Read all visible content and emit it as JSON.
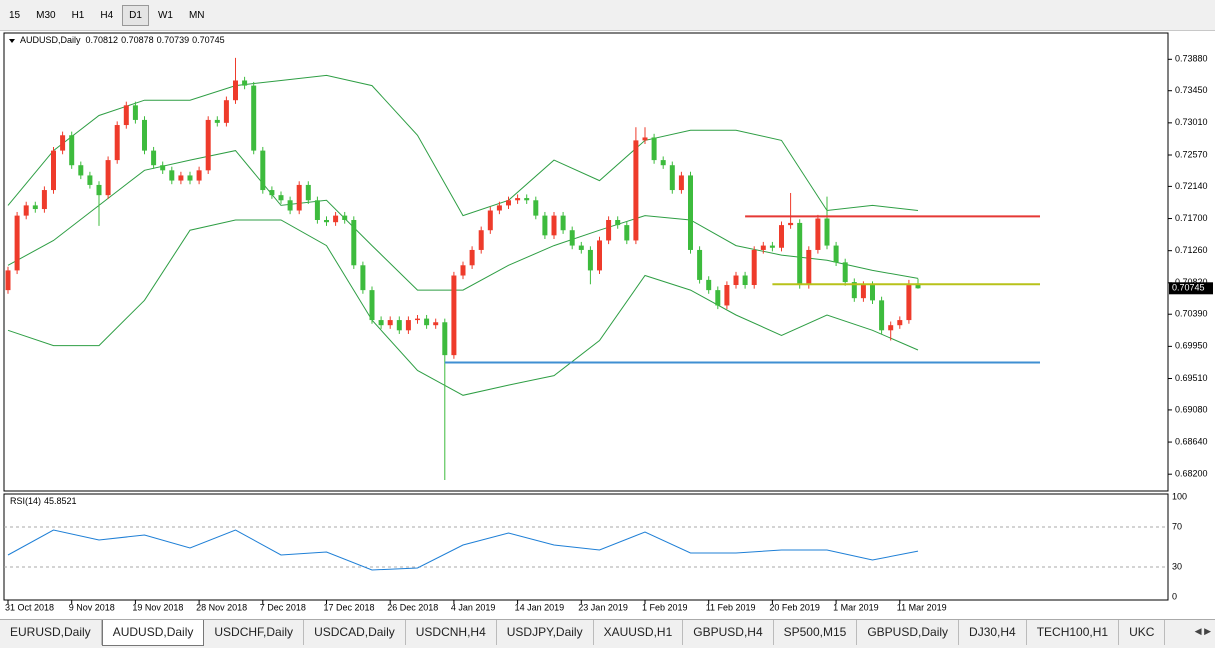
{
  "toolbar": {
    "timeframes": [
      "15",
      "M30",
      "H1",
      "H4",
      "D1",
      "W1",
      "MN"
    ],
    "active": 4
  },
  "chart_data": [
    {
      "type": "candlestick",
      "symbol": "AUDUSD,Daily",
      "categories": [
        "31 Oct 2018",
        null,
        null,
        null,
        null,
        null,
        null,
        "9 Nov 2018",
        null,
        null,
        null,
        null,
        null,
        null,
        "19 Nov 2018",
        null,
        null,
        null,
        null,
        null,
        null,
        "28 Nov 2018",
        null,
        null,
        null,
        null,
        null,
        null,
        "7 Dec 2018",
        null,
        null,
        null,
        null,
        null,
        null,
        "17 Dec 2018",
        null,
        null,
        null,
        null,
        null,
        null,
        "26 Dec 2018",
        null,
        null,
        null,
        null,
        null,
        null,
        "4 Jan 2019",
        null,
        null,
        null,
        null,
        null,
        null,
        "14 Jan 2019",
        null,
        null,
        null,
        null,
        null,
        null,
        "23 Jan 2019",
        null,
        null,
        null,
        null,
        null,
        null,
        "1 Feb 2019",
        null,
        null,
        null,
        null,
        null,
        null,
        "11 Feb 2019",
        null,
        null,
        null,
        null,
        null,
        null,
        "20 Feb 2019",
        null,
        null,
        null,
        null,
        null,
        null,
        "1 Mar 2019",
        null,
        null,
        null,
        null,
        null,
        null,
        "11 Mar 2019",
        null,
        null
      ],
      "open": [
        0.7072,
        0.7099,
        0.7174,
        0.7188,
        0.7183,
        0.7209,
        0.7263,
        0.7284,
        0.7243,
        0.7229,
        0.7216,
        0.7202,
        0.725,
        0.7298,
        0.7325,
        0.7305,
        0.7263,
        0.7243,
        0.7236,
        0.7222,
        0.7229,
        0.7222,
        0.7236,
        0.7305,
        0.7301,
        0.7332,
        0.7359,
        0.7352,
        0.7263,
        0.7209,
        0.7202,
        0.7195,
        0.7181,
        0.7216,
        0.7195,
        0.7168,
        0.7165,
        0.7174,
        0.7168,
        0.7106,
        0.7072,
        0.7031,
        0.7024,
        0.7031,
        0.7017,
        0.7031,
        0.7033,
        0.7024,
        0.7028,
        0.6983,
        0.7092,
        0.7106,
        0.7127,
        0.7154,
        0.7181,
        0.7188,
        0.7195,
        0.7198,
        0.7195,
        0.7174,
        0.7147,
        0.7174,
        0.7154,
        0.7133,
        0.7127,
        0.7099,
        0.714,
        0.7168,
        0.7161,
        0.714,
        0.7277,
        0.7281,
        0.725,
        0.7243,
        0.7209,
        0.7229,
        0.7127,
        0.7086,
        0.7072,
        0.7051,
        0.7079,
        0.7092,
        0.7079,
        0.7127,
        0.7133,
        0.713,
        0.7161,
        0.7164,
        0.7079,
        0.7127,
        0.717,
        0.7133,
        0.711,
        0.7083,
        0.7061,
        0.7079,
        0.7058,
        0.7017,
        0.7024,
        0.7031,
        0.70812
      ],
      "high": [
        0.7104,
        0.7179,
        0.7193,
        0.7193,
        0.7214,
        0.7268,
        0.7289,
        0.7289,
        0.7248,
        0.7234,
        0.7221,
        0.7255,
        0.7303,
        0.733,
        0.733,
        0.731,
        0.7268,
        0.7248,
        0.7241,
        0.7234,
        0.7234,
        0.7241,
        0.731,
        0.731,
        0.7337,
        0.739,
        0.7364,
        0.7357,
        0.7268,
        0.7214,
        0.7207,
        0.72,
        0.7221,
        0.7221,
        0.72,
        0.7173,
        0.7179,
        0.7179,
        0.7173,
        0.7111,
        0.7077,
        0.7036,
        0.7036,
        0.7036,
        0.7036,
        0.7038,
        0.7038,
        0.7033,
        0.7033,
        0.7097,
        0.7111,
        0.7132,
        0.7159,
        0.7186,
        0.7193,
        0.72,
        0.7203,
        0.7203,
        0.72,
        0.7179,
        0.7179,
        0.7179,
        0.7159,
        0.7138,
        0.7132,
        0.7145,
        0.7173,
        0.7173,
        0.7166,
        0.7295,
        0.7295,
        0.7286,
        0.7255,
        0.7248,
        0.7234,
        0.7234,
        0.7132,
        0.7091,
        0.7077,
        0.7084,
        0.7097,
        0.7097,
        0.7132,
        0.7138,
        0.7138,
        0.7166,
        0.7205,
        0.7169,
        0.7132,
        0.7175,
        0.72,
        0.7138,
        0.7115,
        0.7088,
        0.7084,
        0.7084,
        0.7063,
        0.7029,
        0.7036,
        0.7086,
        0.70878
      ],
      "low": [
        0.7067,
        0.7094,
        0.7169,
        0.7178,
        0.7178,
        0.7204,
        0.7258,
        0.7238,
        0.7224,
        0.7211,
        0.716,
        0.7197,
        0.7245,
        0.7293,
        0.73,
        0.7258,
        0.7238,
        0.7231,
        0.7217,
        0.7217,
        0.7217,
        0.7217,
        0.7231,
        0.7296,
        0.7296,
        0.7327,
        0.7347,
        0.7258,
        0.7204,
        0.7197,
        0.719,
        0.7176,
        0.7176,
        0.719,
        0.7163,
        0.716,
        0.716,
        0.7163,
        0.7101,
        0.7067,
        0.7026,
        0.7019,
        0.7019,
        0.7012,
        0.7012,
        0.7026,
        0.7019,
        0.7019,
        0.6812,
        0.6978,
        0.7087,
        0.7101,
        0.7122,
        0.7149,
        0.7176,
        0.7183,
        0.719,
        0.719,
        0.7169,
        0.7142,
        0.7142,
        0.7149,
        0.7128,
        0.7122,
        0.708,
        0.7094,
        0.7135,
        0.7156,
        0.7135,
        0.7135,
        0.7272,
        0.7245,
        0.7238,
        0.7204,
        0.7204,
        0.7122,
        0.7081,
        0.7067,
        0.7046,
        0.7046,
        0.7074,
        0.7074,
        0.7074,
        0.7122,
        0.7125,
        0.7125,
        0.7156,
        0.7074,
        0.7074,
        0.7122,
        0.7128,
        0.7105,
        0.7078,
        0.7056,
        0.7056,
        0.7053,
        0.7012,
        0.7003,
        0.7019,
        0.7026,
        0.70739
      ],
      "close": [
        0.7099,
        0.7174,
        0.7188,
        0.7183,
        0.7209,
        0.7263,
        0.7284,
        0.7243,
        0.7229,
        0.7216,
        0.7202,
        0.725,
        0.7298,
        0.7325,
        0.7305,
        0.7263,
        0.7243,
        0.7236,
        0.7222,
        0.7229,
        0.7222,
        0.7236,
        0.7305,
        0.7301,
        0.7332,
        0.7359,
        0.7352,
        0.7263,
        0.7209,
        0.7202,
        0.7195,
        0.7181,
        0.7216,
        0.7195,
        0.7168,
        0.7165,
        0.7174,
        0.7168,
        0.7106,
        0.7072,
        0.7031,
        0.7024,
        0.7031,
        0.7017,
        0.7031,
        0.7033,
        0.7024,
        0.7028,
        0.6983,
        0.7092,
        0.7106,
        0.7127,
        0.7154,
        0.7181,
        0.7188,
        0.7195,
        0.7198,
        0.7195,
        0.7174,
        0.7147,
        0.7174,
        0.7154,
        0.7133,
        0.7127,
        0.7099,
        0.714,
        0.7168,
        0.7161,
        0.714,
        0.7277,
        0.7281,
        0.725,
        0.7243,
        0.7209,
        0.7229,
        0.7127,
        0.7086,
        0.7072,
        0.7051,
        0.7079,
        0.7092,
        0.7079,
        0.7127,
        0.7133,
        0.713,
        0.7161,
        0.7164,
        0.7079,
        0.7127,
        0.717,
        0.7133,
        0.711,
        0.7083,
        0.7061,
        0.7079,
        0.7058,
        0.7017,
        0.7024,
        0.7031,
        0.7081,
        0.70745
      ],
      "up_color": "#ee3b2b",
      "down_color": "#3dbb3d",
      "bands": {
        "color": "#2e9e44",
        "x": [
          0,
          5,
          10,
          15,
          20,
          25,
          30,
          35,
          40,
          45,
          50,
          55,
          60,
          65,
          70,
          75,
          80,
          85,
          90,
          95,
          100
        ],
        "upper": [
          0.7188,
          0.7263,
          0.7311,
          0.7332,
          0.7332,
          0.7352,
          0.7359,
          0.7366,
          0.7352,
          0.7284,
          0.7174,
          0.7195,
          0.725,
          0.7222,
          0.7277,
          0.7291,
          0.7291,
          0.7277,
          0.7181,
          0.7188,
          0.7181
        ],
        "middle": [
          0.7106,
          0.714,
          0.7188,
          0.7236,
          0.725,
          0.7263,
          0.7188,
          0.7195,
          0.7133,
          0.7072,
          0.7072,
          0.7106,
          0.7133,
          0.7154,
          0.7174,
          0.7168,
          0.7133,
          0.712,
          0.7113,
          0.7099,
          0.7088
        ],
        "lower": [
          0.7017,
          0.6996,
          0.6996,
          0.7058,
          0.7154,
          0.7168,
          0.7168,
          0.7133,
          0.7031,
          0.6962,
          0.6928,
          0.6942,
          0.6955,
          0.7003,
          0.7092,
          0.7072,
          0.7038,
          0.701,
          0.7038,
          0.7017,
          0.699
        ]
      },
      "levels": [
        {
          "value": 0.7173,
          "color": "#e53935",
          "start": 81
        },
        {
          "value": 0.708,
          "color": "#b8c21a",
          "start": 84
        },
        {
          "value": 0.6973,
          "color": "#3f8fd2",
          "start": 48
        }
      ],
      "ylim": [
        0.6797,
        0.7424
      ],
      "yticks": [
        {
          "value": 0.7388,
          "label": "0.73880"
        },
        {
          "value": 0.7345,
          "label": "0.73450"
        },
        {
          "value": 0.7301,
          "label": "0.73010"
        },
        {
          "value": 0.7257,
          "label": "0.72570"
        },
        {
          "value": 0.7214,
          "label": "0.72140"
        },
        {
          "value": 0.717,
          "label": "0.71700"
        },
        {
          "value": 0.7126,
          "label": "0.71260"
        },
        {
          "value": 0.7082,
          "label": "0.70820"
        },
        {
          "value": 0.7039,
          "label": "0.70390"
        },
        {
          "value": 0.6995,
          "label": "0.69950"
        },
        {
          "value": 0.6951,
          "label": "0.69510"
        },
        {
          "value": 0.6908,
          "label": "0.69080"
        },
        {
          "value": 0.6864,
          "label": "0.68640"
        },
        {
          "value": 0.682,
          "label": "0.68200"
        }
      ]
    },
    {
      "type": "line",
      "title": "RSI(14)",
      "color": "#1e7fd6",
      "x": [
        0,
        5,
        10,
        15,
        20,
        25,
        30,
        35,
        40,
        45,
        50,
        55,
        60,
        65,
        70,
        75,
        80,
        85,
        90,
        95,
        100
      ],
      "values": [
        42,
        67,
        57,
        62,
        49,
        67,
        42,
        45,
        27,
        29,
        52,
        64,
        52,
        47,
        65,
        44,
        44,
        47,
        47,
        37,
        45.8521
      ],
      "ylim": [
        0,
        100
      ],
      "yticks": [
        100,
        70,
        30,
        0
      ]
    }
  ],
  "tabs": {
    "items": [
      "EURUSD,Daily",
      "AUDUSD,Daily",
      "USDCHF,Daily",
      "USDCAD,Daily",
      "USDCNH,H4",
      "USDJPY,Daily",
      "XAUUSD,H1",
      "GBPUSD,H4",
      "SP500,M15",
      "GBPUSD,Daily",
      "DJ30,H4",
      "TECH100,H1",
      "UKC"
    ],
    "active": 1
  }
}
